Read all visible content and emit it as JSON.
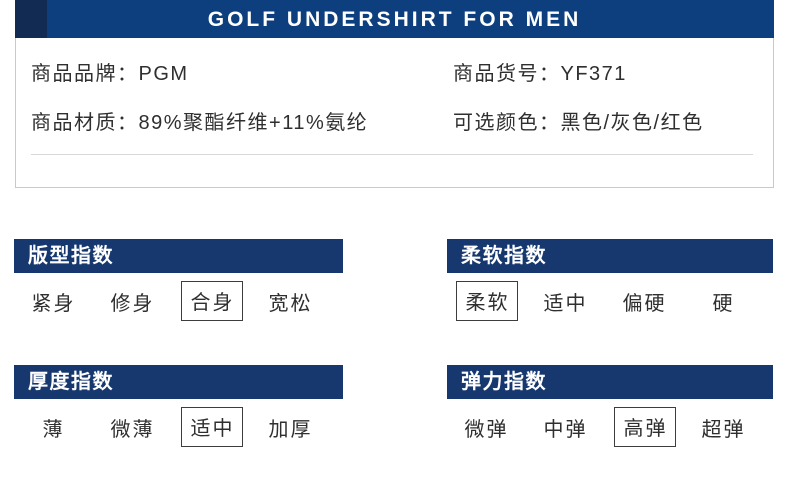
{
  "banner": {
    "title": "GOLF UNDERSHIRT FOR MEN"
  },
  "info": {
    "rows": [
      {
        "left": {
          "label": "商品品牌：",
          "value": "PGM"
        },
        "right": {
          "label": "商品货号：",
          "value": "YF371"
        }
      },
      {
        "left": {
          "label": "商品材质：",
          "value": "89%聚酯纤维+11%氨纶"
        },
        "right": {
          "label": "可选颜色：",
          "value": "黑色/灰色/红色"
        }
      }
    ]
  },
  "sections": [
    {
      "title": "版型指数",
      "options": [
        "紧身",
        "修身",
        "合身",
        "宽松"
      ],
      "selected": "合身"
    },
    {
      "title": "柔软指数",
      "options": [
        "柔软",
        "适中",
        "偏硬",
        "硬"
      ],
      "selected": "柔软"
    },
    {
      "title": "厚度指数",
      "options": [
        "薄",
        "微薄",
        "适中",
        "加厚"
      ],
      "selected": "适中"
    },
    {
      "title": "弹力指数",
      "options": [
        "微弹",
        "中弹",
        "高弹",
        "超弹"
      ],
      "selected": "高弹"
    }
  ],
  "colors": {
    "banner_blue": "#0d3e7d",
    "banner_dark": "#112b52",
    "header_blue": "#17386f",
    "box_border": "#c9c9c9",
    "divider": "#d8d8d8",
    "text_dark": "#2f2f2f"
  }
}
